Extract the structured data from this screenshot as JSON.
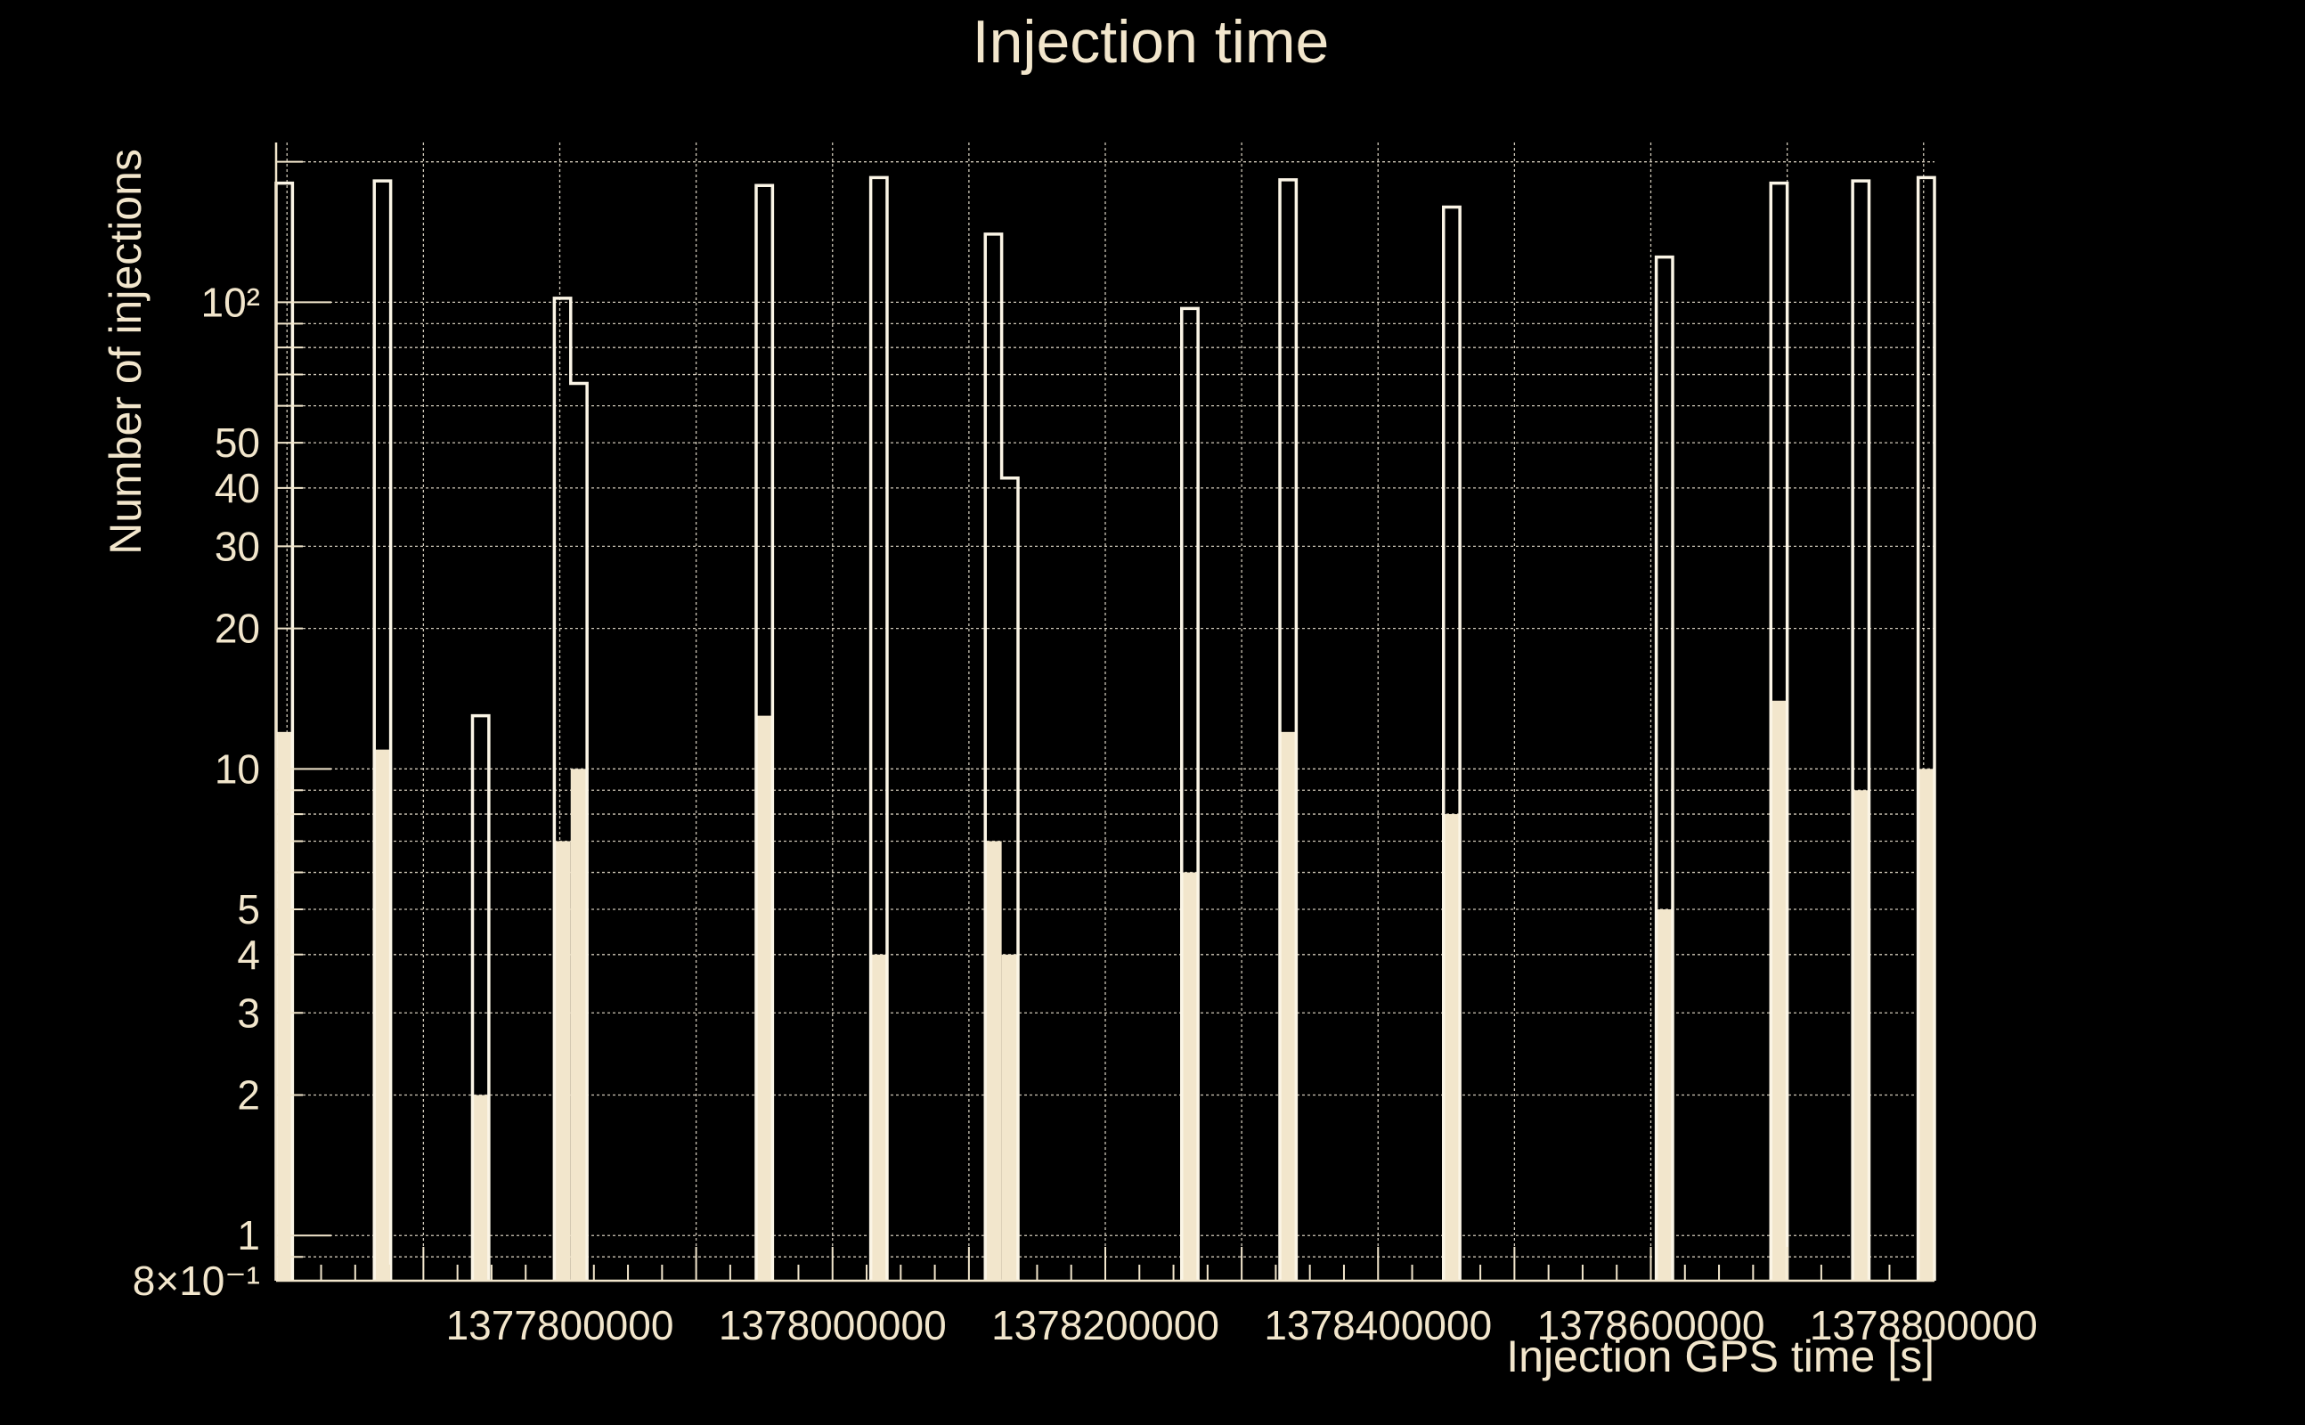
{
  "chart_data": {
    "type": "bar",
    "title": "Injection time",
    "xlabel": "Injection GPS time [s]",
    "ylabel": "Number of injections",
    "yscale": "log",
    "ylim": [
      0.8,
      220
    ],
    "xlim": [
      1377592000,
      1378808000
    ],
    "grid": true,
    "bin_width": 12000,
    "x_ticks": [
      1377800000,
      1378000000,
      1378200000,
      1378400000,
      1378600000,
      1378800000
    ],
    "x_tick_labels": [
      "1377800000",
      "1378000000",
      "1378200000",
      "1378400000",
      "1378600000",
      "1378800000"
    ],
    "y_ticks": [
      0.8,
      1,
      2,
      3,
      4,
      5,
      10,
      20,
      30,
      40,
      50,
      100
    ],
    "y_tick_labels": [
      "8×10⁻¹",
      "1",
      "2",
      "3",
      "4",
      "5",
      "10",
      "20",
      "30",
      "40",
      "50",
      "10²"
    ],
    "series": [
      {
        "role": "total",
        "bins": [
          {
            "x": 1377592000,
            "value": 180
          },
          {
            "x": 1377664000,
            "value": 182
          },
          {
            "x": 1377736000,
            "value": 13
          },
          {
            "x": 1377796000,
            "value": 102
          },
          {
            "x": 1377808000,
            "value": 67
          },
          {
            "x": 1377944000,
            "value": 178
          },
          {
            "x": 1378028000,
            "value": 185
          },
          {
            "x": 1378112000,
            "value": 140
          },
          {
            "x": 1378124000,
            "value": 42
          },
          {
            "x": 1378256000,
            "value": 97
          },
          {
            "x": 1378328000,
            "value": 183
          },
          {
            "x": 1378448000,
            "value": 160
          },
          {
            "x": 1378604000,
            "value": 125
          },
          {
            "x": 1378688000,
            "value": 180
          },
          {
            "x": 1378748000,
            "value": 182
          },
          {
            "x": 1378796000,
            "value": 185
          }
        ]
      },
      {
        "role": "filled",
        "bins": [
          {
            "x": 1377592000,
            "value": 12
          },
          {
            "x": 1377664000,
            "value": 11
          },
          {
            "x": 1377736000,
            "value": 2
          },
          {
            "x": 1377796000,
            "value": 7
          },
          {
            "x": 1377808000,
            "value": 10
          },
          {
            "x": 1377944000,
            "value": 13
          },
          {
            "x": 1378028000,
            "value": 4
          },
          {
            "x": 1378112000,
            "value": 7
          },
          {
            "x": 1378124000,
            "value": 4
          },
          {
            "x": 1378256000,
            "value": 6
          },
          {
            "x": 1378328000,
            "value": 12
          },
          {
            "x": 1378448000,
            "value": 8
          },
          {
            "x": 1378604000,
            "value": 5
          },
          {
            "x": 1378688000,
            "value": 14
          },
          {
            "x": 1378748000,
            "value": 9
          },
          {
            "x": 1378796000,
            "value": 10
          }
        ]
      }
    ]
  }
}
